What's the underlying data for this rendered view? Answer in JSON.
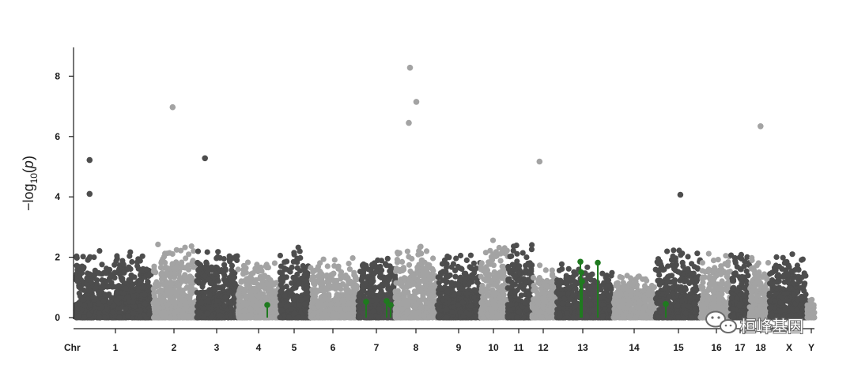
{
  "chart_data": {
    "type": "scatter",
    "title": "",
    "xlabel": "",
    "ylabel": "-log10(p)",
    "ylim": [
      0,
      9
    ],
    "yticks": [
      0,
      2,
      4,
      6,
      8
    ],
    "x_prefix_label": "Chr",
    "chromosomes": [
      "1",
      "2",
      "3",
      "4",
      "5",
      "6",
      "7",
      "8",
      "9",
      "10",
      "11",
      "12",
      "13",
      "14",
      "15",
      "16",
      "17",
      "18",
      "X",
      "Y"
    ],
    "background_colors": {
      "odd": "#4d4d4d",
      "even": "#a3a3a3"
    },
    "highlight_color": "#1f7a1f",
    "top_hits": [
      {
        "chr": "1",
        "p": 5.22
      },
      {
        "chr": "1",
        "p": 4.1
      },
      {
        "chr": "2",
        "p": 6.97
      },
      {
        "chr": "3",
        "p": 5.28
      },
      {
        "chr": "8",
        "p": 8.28
      },
      {
        "chr": "8",
        "p": 7.15
      },
      {
        "chr": "8",
        "p": 6.45
      },
      {
        "chr": "12",
        "p": 5.17
      },
      {
        "chr": "15",
        "p": 4.07
      },
      {
        "chr": "18",
        "p": 6.34
      }
    ],
    "highlighted_snps": [
      {
        "chr": "4",
        "p": 0.42
      },
      {
        "chr": "7",
        "p": 0.52
      },
      {
        "chr": "7",
        "p": 0.55
      },
      {
        "chr": "7",
        "p": 0.42
      },
      {
        "chr": "13",
        "p": 1.85
      },
      {
        "chr": "13",
        "p": 1.5
      },
      {
        "chr": "13",
        "p": 1.2
      },
      {
        "chr": "13",
        "p": 1.82
      },
      {
        "chr": "15",
        "p": 0.45
      }
    ]
  },
  "watermark": {
    "icon": "wechat-icon",
    "text": "桓峰基因"
  }
}
